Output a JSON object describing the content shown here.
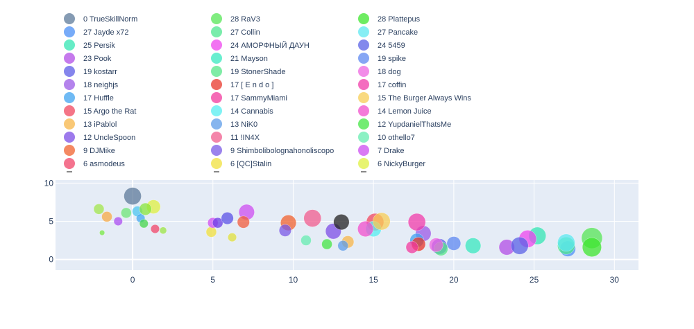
{
  "chart_data": {
    "type": "scatter",
    "subtype": "bubble",
    "title": "",
    "xlabel": "",
    "ylabel": "",
    "xlim": [
      -4.8,
      31.5
    ],
    "ylim": [
      -1.4,
      10.4
    ],
    "xticks": [
      0,
      5,
      10,
      15,
      20,
      25,
      30
    ],
    "yticks": [
      0,
      5,
      10
    ],
    "grid": true,
    "legend_position": "top",
    "plot_background": "#e5ecf6",
    "series": [
      {
        "name": "0 TrueSkillNorm",
        "color": "#5c7a99",
        "points": [
          {
            "x": 0.0,
            "y": 8.3,
            "size": 10
          }
        ]
      },
      {
        "name": "27 Jayde x72",
        "color": "#4a8ff5",
        "points": [
          {
            "x": 27.1,
            "y": 1.4,
            "size": 9
          }
        ]
      },
      {
        "name": "25 Persik",
        "color": "#33e6b3",
        "points": [
          {
            "x": 25.2,
            "y": 3.1,
            "size": 10
          }
        ]
      },
      {
        "name": "23 Pook",
        "color": "#b24de6",
        "points": [
          {
            "x": 23.3,
            "y": 1.6,
            "size": 9
          }
        ]
      },
      {
        "name": "19 kostarr",
        "color": "#5c5ce6",
        "points": [
          {
            "x": 19.1,
            "y": 1.7,
            "size": 9
          }
        ]
      },
      {
        "name": "18 neighjs",
        "color": "#9b59e6",
        "points": [
          {
            "x": 18.1,
            "y": 3.4,
            "size": 9
          }
        ]
      },
      {
        "name": "17 Huffle",
        "color": "#3fa3f0",
        "points": [
          {
            "x": 17.7,
            "y": 2.5,
            "size": 8
          }
        ]
      },
      {
        "name": "15 Argo the Rat",
        "color": "#f0475f",
        "points": [
          {
            "x": 15.1,
            "y": 4.9,
            "size": 10
          }
        ]
      },
      {
        "name": "13 iPablol",
        "color": "#f7b548",
        "points": [
          {
            "x": 13.4,
            "y": 2.3,
            "size": 7
          }
        ]
      },
      {
        "name": "12 UncleSpoon",
        "color": "#7c4ee6",
        "points": [
          {
            "x": 12.5,
            "y": 3.7,
            "size": 9
          }
        ]
      },
      {
        "name": "9 DJMike",
        "color": "#f0612e",
        "points": [
          {
            "x": 9.7,
            "y": 4.8,
            "size": 9
          }
        ]
      },
      {
        "name": "6 asmodeus",
        "color": "#f04468",
        "points": [
          {
            "x": 1.4,
            "y": 4.0,
            "size": 5
          }
        ]
      },
      {
        "name": "28 RaV3",
        "color": "#55e655",
        "points": [
          {
            "x": 28.6,
            "y": 2.8,
            "size": 12
          }
        ]
      },
      {
        "name": "27 Collin",
        "color": "#4de68f",
        "points": [
          {
            "x": 27.0,
            "y": 1.8,
            "size": 10
          }
        ]
      },
      {
        "name": "24 АМОРФНЫЙ ДАУН",
        "color": "#ee44ee",
        "points": [
          {
            "x": 24.6,
            "y": 2.7,
            "size": 10
          }
        ]
      },
      {
        "name": "21 Mayson",
        "color": "#38e8bf",
        "points": [
          {
            "x": 21.2,
            "y": 1.8,
            "size": 9
          }
        ]
      },
      {
        "name": "19 StonerShade",
        "color": "#55e688",
        "points": [
          {
            "x": 19.2,
            "y": 1.4,
            "size": 8
          }
        ]
      },
      {
        "name": "17 [ E n d o ]",
        "color": "#e8372b",
        "points": [
          {
            "x": 17.8,
            "y": 2.0,
            "size": 8
          }
        ]
      },
      {
        "name": "17 SammyMiami",
        "color": "#f2399e",
        "points": [
          {
            "x": 17.4,
            "y": 1.6,
            "size": 7
          }
        ]
      },
      {
        "name": "14 Cannabis",
        "color": "#55eef0",
        "points": [
          {
            "x": 15.0,
            "y": 4.0,
            "size": 9
          }
        ]
      },
      {
        "name": "13 NiK0",
        "color": "#5e9ce8",
        "points": [
          {
            "x": 13.1,
            "y": 1.8,
            "size": 6
          }
        ]
      },
      {
        "name": "11 !IN4X",
        "color": "#f05c8e",
        "points": [
          {
            "x": 11.2,
            "y": 5.4,
            "size": 10
          }
        ]
      },
      {
        "name": "9 Shimbolibolognahonoliscopo",
        "color": "#7a5ae6",
        "points": [
          {
            "x": 9.5,
            "y": 3.8,
            "size": 7
          }
        ]
      },
      {
        "name": "6 [QC]Stalin",
        "color": "#f0e03c",
        "points": [
          {
            "x": 4.9,
            "y": 3.6,
            "size": 6
          }
        ]
      },
      {
        "name": "28 Plattepus",
        "color": "#3ee62e",
        "points": [
          {
            "x": 28.6,
            "y": 1.6,
            "size": 11
          }
        ]
      },
      {
        "name": "27 Pancake",
        "color": "#5ee8f0",
        "points": [
          {
            "x": 27.0,
            "y": 2.2,
            "size": 10
          }
        ]
      },
      {
        "name": "24 5459",
        "color": "#5a61e6",
        "points": [
          {
            "x": 24.1,
            "y": 1.8,
            "size": 10
          }
        ]
      },
      {
        "name": "19 spike",
        "color": "#5e88f0",
        "points": [
          {
            "x": 20.0,
            "y": 2.1,
            "size": 8
          }
        ]
      },
      {
        "name": "18 dog",
        "color": "#ee66e0",
        "points": [
          {
            "x": 18.9,
            "y": 1.9,
            "size": 8
          }
        ]
      },
      {
        "name": "17 coffin",
        "color": "#f03caa",
        "points": [
          {
            "x": 17.7,
            "y": 4.9,
            "size": 10
          }
        ]
      },
      {
        "name": "15 The Burger Always Wins",
        "color": "#f7cd55",
        "points": [
          {
            "x": 15.5,
            "y": 5.0,
            "size": 10
          }
        ]
      },
      {
        "name": "14 Lemon Juice",
        "color": "#f04fcc",
        "points": [
          {
            "x": 14.5,
            "y": 4.0,
            "size": 9
          }
        ]
      },
      {
        "name": "12 YupdanielThatsMe",
        "color": "#44e644",
        "points": [
          {
            "x": 12.1,
            "y": 2.0,
            "size": 6
          }
        ]
      },
      {
        "name": "10 othello7",
        "color": "#66ecb0",
        "points": [
          {
            "x": 10.8,
            "y": 2.5,
            "size": 6
          }
        ]
      },
      {
        "name": "7 Drake",
        "color": "#cc4ef0",
        "points": [
          {
            "x": 7.1,
            "y": 6.2,
            "size": 9
          }
        ]
      },
      {
        "name": "6 NickyBurger",
        "color": "#dff040",
        "points": [
          {
            "x": 1.3,
            "y": 6.9,
            "size": 8
          }
        ]
      }
    ],
    "unlabeled_points": [
      {
        "x": -2.1,
        "y": 6.6,
        "size": 6,
        "color": "#a2e64c"
      },
      {
        "x": -1.6,
        "y": 5.6,
        "size": 6,
        "color": "#f7aa44"
      },
      {
        "x": -1.9,
        "y": 3.5,
        "size": 3,
        "color": "#77ea44"
      },
      {
        "x": -0.9,
        "y": 5.0,
        "size": 5,
        "color": "#a94ef0"
      },
      {
        "x": -0.4,
        "y": 6.1,
        "size": 6,
        "color": "#6ee677"
      },
      {
        "x": 0.3,
        "y": 6.3,
        "size": 6,
        "color": "#4ec7f0"
      },
      {
        "x": 0.5,
        "y": 5.4,
        "size": 5,
        "color": "#44aaf0"
      },
      {
        "x": 0.7,
        "y": 4.7,
        "size": 5,
        "color": "#44d64a"
      },
      {
        "x": 0.8,
        "y": 6.6,
        "size": 7,
        "color": "#88e63c"
      },
      {
        "x": 1.9,
        "y": 3.8,
        "size": 4,
        "color": "#9ce644"
      },
      {
        "x": 5.0,
        "y": 4.8,
        "size": 6,
        "color": "#d24ef0"
      },
      {
        "x": 5.3,
        "y": 4.8,
        "size": 6,
        "color": "#6a3ee6"
      },
      {
        "x": 5.9,
        "y": 5.4,
        "size": 7,
        "color": "#5a52e6"
      },
      {
        "x": 6.2,
        "y": 2.9,
        "size": 5,
        "color": "#e0e03c"
      },
      {
        "x": 6.9,
        "y": 4.9,
        "size": 7,
        "color": "#f05c3c"
      },
      {
        "x": 13.0,
        "y": 4.9,
        "size": 9,
        "color": "#222222"
      }
    ]
  }
}
